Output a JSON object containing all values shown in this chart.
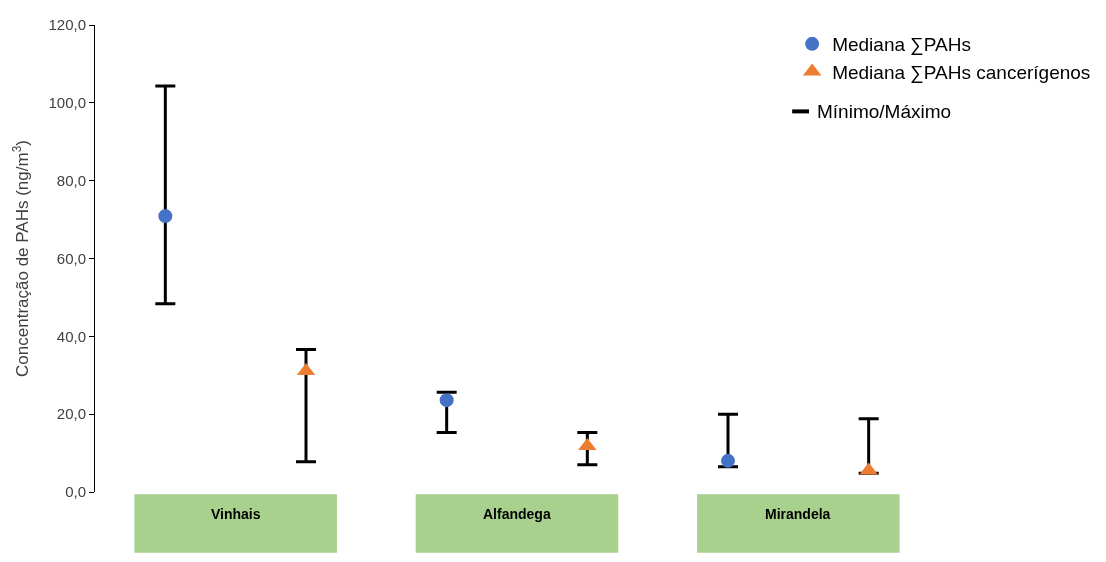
{
  "chart_data": {
    "type": "scatter",
    "ylabel": "Concentração de PAHs (ng/m$^{3}$)",
    "categories": [
      "Vinhais",
      "Alfandega",
      "Mirandela"
    ],
    "series": [
      {
        "name": "Mediana ∑PAHs",
        "color": "#4472c4",
        "marker": "circle",
        "values": [
          70.9,
          23.6,
          8.0
        ],
        "errors": [
          [
            48.4,
            104.3
          ],
          [
            15.3,
            25.6
          ],
          [
            6.5,
            20.0
          ]
        ]
      },
      {
        "name": "Mediana ∑PAHs cancerígenos",
        "color": "#ed7d31",
        "marker": "triangle",
        "values": [
          31.1,
          11.8,
          5.5
        ],
        "errors": [
          [
            7.8,
            36.6
          ],
          [
            7.0,
            15.3
          ],
          [
            4.8,
            18.8
          ]
        ]
      }
    ],
    "annotations": [
      "Mínimo/Máximo"
    ],
    "ylim": [
      0,
      120
    ],
    "yticks": [
      {
        "value": 0,
        "label": "0,0"
      },
      {
        "value": 20,
        "label": "20,0"
      },
      {
        "value": 40,
        "label": "40,0"
      },
      {
        "value": 60,
        "label": "60,0"
      },
      {
        "value": 80,
        "label": "80,0"
      },
      {
        "value": 100,
        "label": "100,0"
      },
      {
        "value": 120,
        "label": "120,0"
      }
    ],
    "legend": "top right"
  }
}
